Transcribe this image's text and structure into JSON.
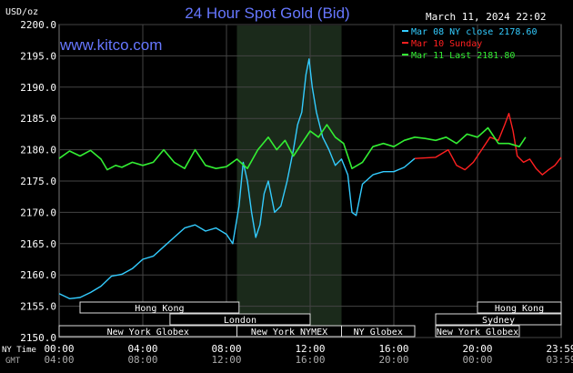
{
  "header": {
    "title": "24 Hour Spot Gold (Bid)",
    "date": "March 11, 2024 22:02",
    "site": "www.kitco.com",
    "unit": "USD/oz"
  },
  "legend": [
    {
      "label": "Mar 08 NY close 2178.60",
      "color": "#33ccff"
    },
    {
      "label": "Mar 10 Sunday",
      "color": "#ff2020"
    },
    {
      "label": "Mar 11 Last 2181.80",
      "color": "#33ee33"
    }
  ],
  "x_axis": {
    "row1_label": "NY Time",
    "row2_label": "GMT",
    "ny_ticks": [
      "00:00",
      "04:00",
      "08:00",
      "12:00",
      "16:00",
      "20:00",
      "23:59"
    ],
    "gmt_ticks": [
      "04:00",
      "08:00",
      "12:00",
      "16:00",
      "20:00",
      "00:00",
      "03:59"
    ]
  },
  "markets": [
    {
      "label": "Hong Kong",
      "start": 1.0,
      "end": 8.6
    },
    {
      "label": "London",
      "start": 5.3,
      "end": 12.0
    },
    {
      "label": "New York Globex",
      "start": 0.0,
      "end": 8.5
    },
    {
      "label": "New York NYMEX",
      "start": 8.5,
      "end": 13.5
    },
    {
      "label": "NY Globex",
      "start": 13.5,
      "end": 17.0
    },
    {
      "label": "Hong Kong",
      "start": 20.0,
      "end": 24.0
    },
    {
      "label": "Sydney",
      "start": 18.0,
      "end": 24.0
    },
    {
      "label": "New York Globex",
      "start": 18.0,
      "end": 22.0
    }
  ],
  "chart_data": {
    "type": "line",
    "x_unit": "NY time (hours)",
    "ylim": [
      2150,
      2200
    ],
    "xlim": [
      0,
      24
    ],
    "y_ticks": [
      "2150.0",
      "2155.0",
      "2160.0",
      "2165.0",
      "2170.0",
      "2175.0",
      "2180.0",
      "2185.0",
      "2190.0",
      "2195.0",
      "2200.0"
    ],
    "nymex_session": [
      8.5,
      13.5
    ],
    "series": [
      {
        "name": "Mar 08 NY close 2178.60",
        "color": "#33ccff",
        "points": [
          [
            0,
            2157.0
          ],
          [
            0.5,
            2156.2
          ],
          [
            1.0,
            2156.4
          ],
          [
            1.5,
            2157.2
          ],
          [
            2.0,
            2158.2
          ],
          [
            2.5,
            2159.8
          ],
          [
            3.0,
            2160.1
          ],
          [
            3.5,
            2161.0
          ],
          [
            4.0,
            2162.5
          ],
          [
            4.5,
            2163.0
          ],
          [
            5.0,
            2164.5
          ],
          [
            5.5,
            2166.0
          ],
          [
            6.0,
            2167.5
          ],
          [
            6.5,
            2168.0
          ],
          [
            7.0,
            2167.0
          ],
          [
            7.5,
            2167.5
          ],
          [
            8.0,
            2166.5
          ],
          [
            8.3,
            2165.0
          ],
          [
            8.6,
            2171.0
          ],
          [
            8.8,
            2178.0
          ],
          [
            9.0,
            2175.0
          ],
          [
            9.2,
            2170.0
          ],
          [
            9.4,
            2166.0
          ],
          [
            9.6,
            2168.0
          ],
          [
            9.8,
            2173.0
          ],
          [
            10.0,
            2175.0
          ],
          [
            10.3,
            2170.0
          ],
          [
            10.6,
            2171.0
          ],
          [
            10.9,
            2175.0
          ],
          [
            11.2,
            2180.0
          ],
          [
            11.4,
            2184.0
          ],
          [
            11.6,
            2186.0
          ],
          [
            11.8,
            2192.0
          ],
          [
            11.95,
            2194.5
          ],
          [
            12.1,
            2190.0
          ],
          [
            12.3,
            2186.0
          ],
          [
            12.6,
            2182.0
          ],
          [
            12.9,
            2180.0
          ],
          [
            13.2,
            2177.5
          ],
          [
            13.5,
            2178.5
          ],
          [
            13.8,
            2176.0
          ],
          [
            14.0,
            2170.0
          ],
          [
            14.2,
            2169.5
          ],
          [
            14.5,
            2174.5
          ],
          [
            15.0,
            2176.0
          ],
          [
            15.5,
            2176.5
          ],
          [
            16.0,
            2176.5
          ],
          [
            16.5,
            2177.2
          ],
          [
            17.0,
            2178.6
          ]
        ]
      },
      {
        "name": "Mar 10 Sunday",
        "color": "#ff2020",
        "points": [
          [
            17.0,
            2178.6
          ],
          [
            18.0,
            2178.8
          ],
          [
            18.6,
            2180.0
          ],
          [
            19.0,
            2177.5
          ],
          [
            19.4,
            2176.8
          ],
          [
            19.8,
            2178.0
          ],
          [
            20.2,
            2180.0
          ],
          [
            20.6,
            2182.0
          ],
          [
            21.0,
            2181.5
          ],
          [
            21.3,
            2184.0
          ],
          [
            21.5,
            2185.8
          ],
          [
            21.7,
            2183.0
          ],
          [
            21.9,
            2179.0
          ],
          [
            22.2,
            2178.0
          ],
          [
            22.5,
            2178.5
          ],
          [
            22.8,
            2177.0
          ],
          [
            23.1,
            2176.0
          ],
          [
            23.4,
            2176.8
          ],
          [
            23.7,
            2177.5
          ],
          [
            24.0,
            2178.8
          ]
        ]
      },
      {
        "name": "Mar 11 Last 2181.80",
        "color": "#33ee33",
        "points": [
          [
            0,
            2178.6
          ],
          [
            0.5,
            2179.8
          ],
          [
            1.0,
            2179.0
          ],
          [
            1.5,
            2179.9
          ],
          [
            2.0,
            2178.5
          ],
          [
            2.3,
            2176.8
          ],
          [
            2.7,
            2177.5
          ],
          [
            3.0,
            2177.2
          ],
          [
            3.5,
            2178.0
          ],
          [
            4.0,
            2177.5
          ],
          [
            4.5,
            2178.0
          ],
          [
            5.0,
            2180.0
          ],
          [
            5.5,
            2178.0
          ],
          [
            6.0,
            2177.0
          ],
          [
            6.5,
            2180.0
          ],
          [
            7.0,
            2177.5
          ],
          [
            7.5,
            2177.0
          ],
          [
            8.0,
            2177.3
          ],
          [
            8.5,
            2178.5
          ],
          [
            9.0,
            2177.0
          ],
          [
            9.5,
            2180.0
          ],
          [
            10.0,
            2182.0
          ],
          [
            10.4,
            2180.0
          ],
          [
            10.8,
            2181.5
          ],
          [
            11.2,
            2179.0
          ],
          [
            11.6,
            2181.0
          ],
          [
            12.0,
            2183.0
          ],
          [
            12.4,
            2182.0
          ],
          [
            12.8,
            2184.0
          ],
          [
            13.2,
            2182.0
          ],
          [
            13.6,
            2181.0
          ],
          [
            14.0,
            2177.0
          ],
          [
            14.5,
            2178.0
          ],
          [
            15.0,
            2180.5
          ],
          [
            15.5,
            2181.0
          ],
          [
            16.0,
            2180.5
          ],
          [
            16.5,
            2181.5
          ],
          [
            17.0,
            2182.0
          ],
          [
            17.5,
            2181.8
          ],
          [
            18.0,
            2181.5
          ],
          [
            18.5,
            2182.0
          ],
          [
            19.0,
            2181.0
          ],
          [
            19.5,
            2182.5
          ],
          [
            20.0,
            2182.0
          ],
          [
            20.5,
            2183.5
          ],
          [
            21.0,
            2181.0
          ],
          [
            21.5,
            2181.0
          ],
          [
            22.0,
            2180.5
          ],
          [
            22.3,
            2182.0
          ]
        ]
      }
    ]
  }
}
